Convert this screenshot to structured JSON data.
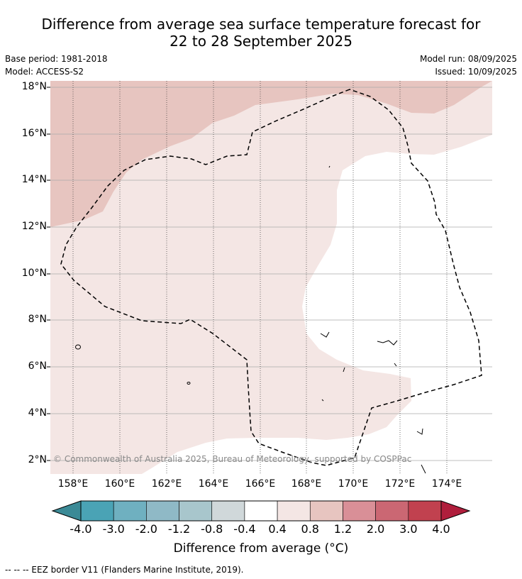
{
  "title_line1": "Difference from average sea surface temperature forecast for",
  "title_line2": "22 to 28 September 2025",
  "base_period": "Base period: 1981-2018",
  "model": "Model: ACCESS-S2",
  "model_run": "Model run: 08/09/2025",
  "issued": "Issued: 10/09/2025",
  "lat_labels": [
    "18°N",
    "16°N",
    "14°N",
    "12°N",
    "10°N",
    "8°N",
    "6°N",
    "4°N",
    "2°N"
  ],
  "lon_labels": [
    "158°E",
    "160°E",
    "162°E",
    "164°E",
    "166°E",
    "168°E",
    "170°E",
    "172°E",
    "174°E"
  ],
  "copyright": "© Commonwealth of Australia 2025, Bureau of Meteorology, supported by COSPPac",
  "colorbar": {
    "ticks": [
      "-4.0",
      "-3.0",
      "-2.0",
      "-1.2",
      "-0.8",
      "-0.4",
      "0.4",
      "0.8",
      "1.2",
      "2.0",
      "3.0",
      "4.0"
    ],
    "colors": [
      "#3b8a96",
      "#4aa3b5",
      "#6fb0c0",
      "#8fb9c6",
      "#a8c6cc",
      "#d0d8da",
      "#ffffff",
      "#f4e6e4",
      "#e7c5c0",
      "#d98f97",
      "#cb6773",
      "#c1414f",
      "#b01e3c"
    ],
    "title": "Difference from average (°C)"
  },
  "footnote": "--  --  -- EEZ border V11 (Flanders Marine Institute, 2019).",
  "map_fill": {
    "light": "#f4e6e4",
    "medium": "#e7c5c0",
    "none": "#ffffff"
  }
}
